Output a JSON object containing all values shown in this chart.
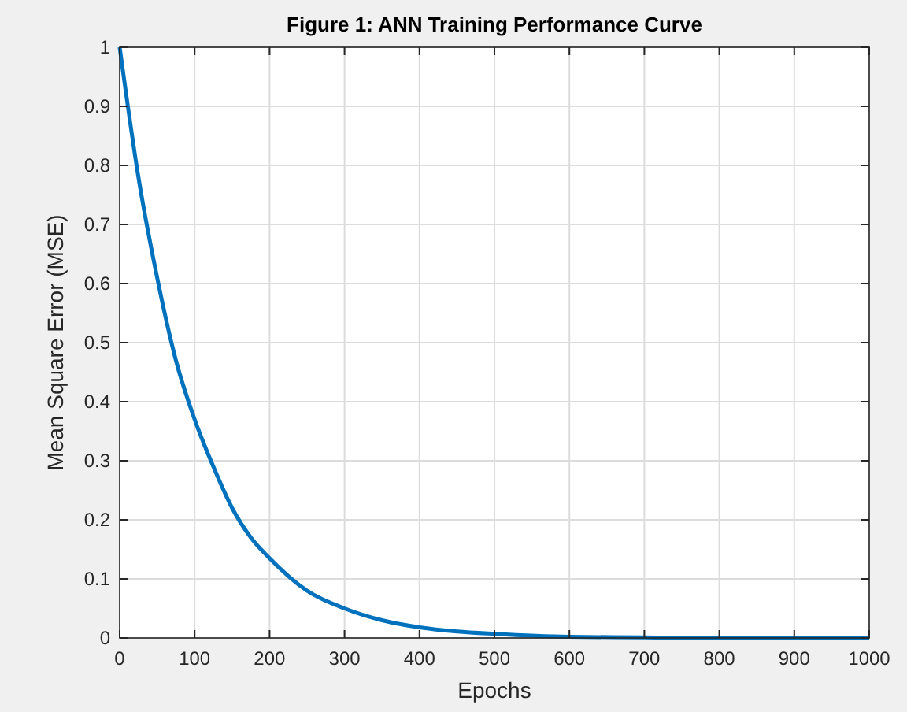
{
  "chart_data": {
    "type": "line",
    "title": "Figure 1: ANN Training Performance Curve",
    "xlabel": "Epochs",
    "ylabel": "Mean Square Error (MSE)",
    "x": [
      0,
      25,
      50,
      75,
      100,
      125,
      150,
      175,
      200,
      250,
      300,
      350,
      400,
      450,
      500,
      600,
      700,
      800,
      900,
      1000
    ],
    "series": [
      {
        "color": "#0072bd",
        "values": [
          1,
          0.78,
          0.61,
          0.47,
          0.37,
          0.29,
          0.22,
          0.17,
          0.135,
          0.08,
          0.05,
          0.03,
          0.018,
          0.011,
          0.007,
          0.002,
          0.001,
          0,
          0,
          0
        ]
      }
    ],
    "xlim": [
      0,
      1000
    ],
    "xticks": [
      0,
      100,
      200,
      300,
      400,
      500,
      600,
      700,
      800,
      900,
      1000
    ],
    "ylim": [
      0,
      1
    ],
    "yticks": [
      0,
      0.1,
      0.2,
      0.3,
      0.4,
      0.5,
      0.6,
      0.7,
      0.8,
      0.9,
      1
    ],
    "grid": true,
    "marker": "none",
    "line_style": "solid"
  }
}
